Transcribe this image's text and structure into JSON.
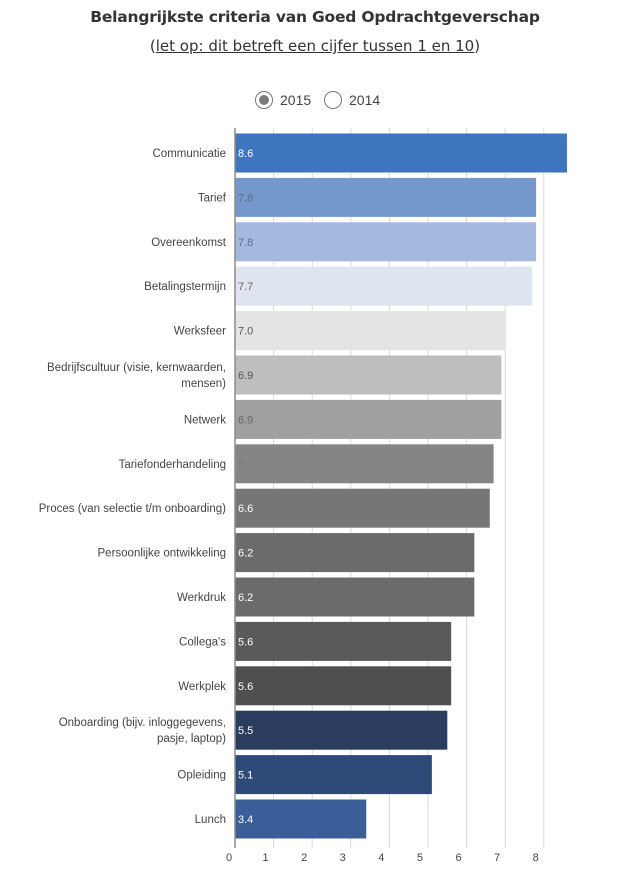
{
  "header": {
    "title": "Belangrijkste criteria van Goed Opdrachtgeverschap",
    "subtitle_open": "(",
    "subtitle_link": "let op: dit betreft een cijfer tussen 1 en 10",
    "subtitle_close": ")"
  },
  "legend": {
    "options": [
      {
        "label": "2015",
        "selected": true
      },
      {
        "label": "2014",
        "selected": false
      }
    ]
  },
  "chart_data": {
    "type": "bar",
    "orientation": "horizontal",
    "title": "Belangrijkste criteria van Goed Opdrachtgeverschap",
    "subtitle": "(let op: dit betreft een cijfer tussen 1 en 10)",
    "xlim": [
      0,
      8.6
    ],
    "xticks": [
      0,
      1,
      2,
      3,
      4,
      5,
      6,
      7,
      8
    ],
    "grid": true,
    "categories": [
      "Communicatie",
      "Tarief",
      "Overeenkomst",
      "Betalingstermijn",
      "Werksfeer",
      "Bedrijfscultuur (visie, kernwaarden, mensen)",
      "Netwerk",
      "Tariefonderhandeling",
      "Proces (van selectie t/m onboarding)",
      "Persoonlijke ontwikkeling",
      "Werkdruk",
      "Collega's",
      "Werkplek",
      "Onboarding (bijv. inloggegevens, pasje, laptop)",
      "Opleiding",
      "Lunch"
    ],
    "category_lines": [
      [
        "Communicatie"
      ],
      [
        "Tarief"
      ],
      [
        "Overeenkomst"
      ],
      [
        "Betalingstermijn"
      ],
      [
        "Werksfeer"
      ],
      [
        "Bedrijfscultuur (visie, kernwaarden,",
        "mensen)"
      ],
      [
        "Netwerk"
      ],
      [
        "Tariefonderhandeling"
      ],
      [
        "Proces (van selectie t/m onboarding)"
      ],
      [
        "Persoonlijke ontwikkeling"
      ],
      [
        "Werkdruk"
      ],
      [
        "Collega's"
      ],
      [
        "Werkplek"
      ],
      [
        "Onboarding (bijv. inloggegevens,",
        "pasje, laptop)"
      ],
      [
        "Opleiding"
      ],
      [
        "Lunch"
      ]
    ],
    "series": [
      {
        "values": [
          8.6,
          7.8,
          7.8,
          7.7,
          7.0,
          6.9,
          6.9,
          6.7,
          6.6,
          6.2,
          6.2,
          5.6,
          5.6,
          5.5,
          5.1,
          3.4
        ],
        "value_labels": [
          "8.6",
          "7.8",
          "7.8",
          "7.7",
          "7.0",
          "6.9",
          "6.9",
          "6.7",
          "6.6",
          "6.2",
          "6.2",
          "5.6",
          "5.6",
          "5.5",
          "5.1",
          "3.4"
        ],
        "colors": [
          "#3f74bf",
          "#7498cc",
          "#a3b9dd",
          "#dfe5ef",
          "#e4e4e4",
          "#bebebe",
          "#a0a0a0",
          "#858585",
          "#767676",
          "#6b6b6b",
          "#6b6b6b",
          "#5a5a5a",
          "#4f4f4f",
          "#2a3d5e",
          "#2e4a78",
          "#3a5f98"
        ],
        "label_colors": [
          "#ffffff",
          "#5b7090",
          "#5b7090",
          "#666666",
          "#555555",
          "#555555",
          "#666666",
          "#7a7a7a",
          "#ffffff",
          "#ffffff",
          "#ffffff",
          "#ffffff",
          "#ffffff",
          "#ffffff",
          "#ffffff",
          "#ffffff"
        ]
      }
    ]
  }
}
